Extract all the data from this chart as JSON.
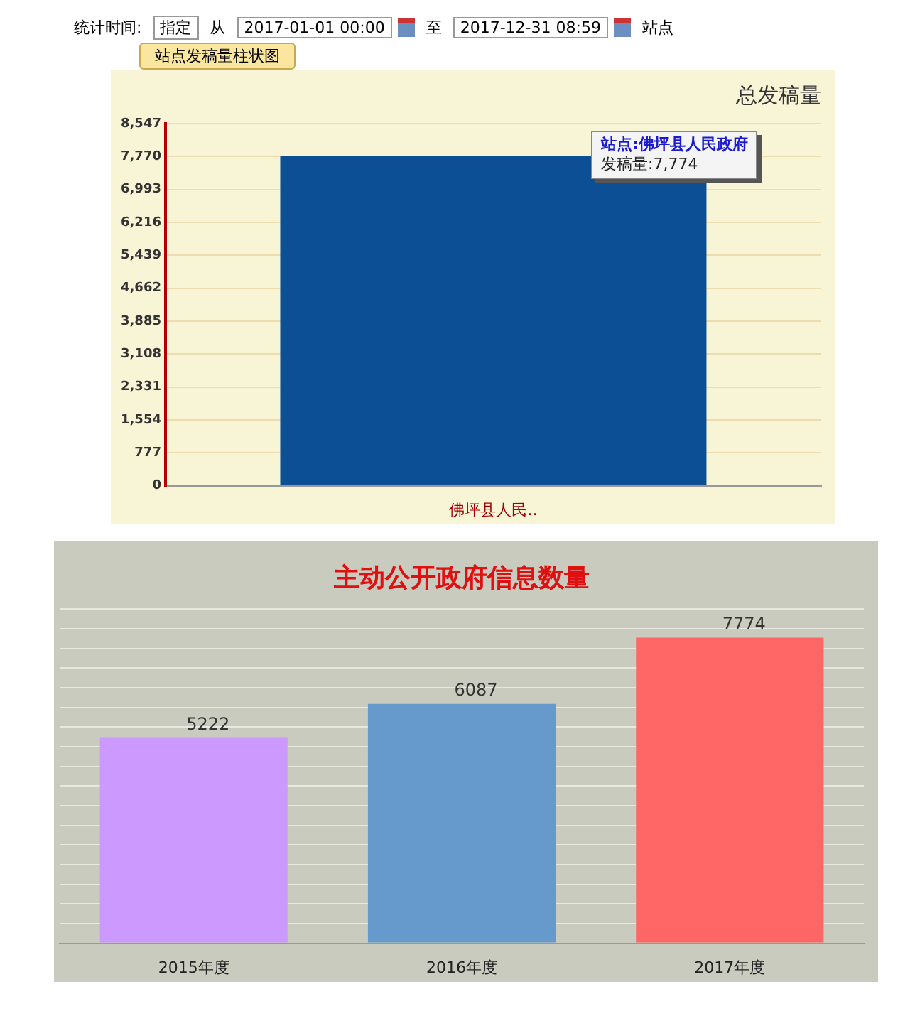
{
  "chart_data": [
    {
      "type": "bar",
      "title": "总发稿量",
      "subtitle": "站点发稿量柱状图",
      "categories": [
        "佛坪县人民.."
      ],
      "values": [
        7774
      ],
      "color": "#0d4f94",
      "ylim": [
        0,
        8547
      ],
      "yticks": [
        0,
        777,
        {
          "value": 1554,
          "label": "1,554"
        },
        {
          "value": 2331,
          "label": "2,331"
        },
        {
          "value": 3108,
          "label": "3,108"
        },
        {
          "value": 3885,
          "label": "3,885"
        },
        {
          "value": 4662,
          "label": "4,662"
        },
        {
          "value": 5439,
          "label": "5,439"
        },
        {
          "value": 6216,
          "label": "6,216"
        },
        {
          "value": 6993,
          "label": "6,993"
        },
        {
          "value": 7770,
          "label": "7,770"
        },
        {
          "value": 8547,
          "label": "8,547"
        }
      ],
      "grid": "y",
      "legend": false,
      "annotations": [
        "统计时间:",
        "指定",
        "从",
        "2017-01-01 00:00",
        "至",
        "2017-12-31 08:59",
        "站点",
        "站点:佛坪县人民政府",
        "发稿量:7,774"
      ]
    },
    {
      "type": "bar",
      "title": "主动公开政府信息数量",
      "categories": [
        "2015年度",
        "2016年度",
        "2017年度"
      ],
      "values": [
        5222,
        6087,
        7774
      ],
      "colors": [
        "#cc99ff",
        "#6699cc",
        "#ff6666"
      ],
      "data_labels": true,
      "ylim": [
        0,
        8500
      ],
      "yticks": [
        {
          "value": 0,
          "label": null
        },
        {
          "value": 500,
          "label": null
        },
        {
          "value": 1000,
          "label": null
        },
        {
          "value": 1500,
          "label": null
        },
        {
          "value": 2000,
          "label": null
        },
        {
          "value": 2500,
          "label": null
        },
        {
          "value": 3000,
          "label": null
        },
        {
          "value": 3500,
          "label": null
        },
        {
          "value": 4000,
          "label": null
        },
        {
          "value": 4500,
          "label": null
        },
        {
          "value": 5000,
          "label": null
        },
        {
          "value": 5500,
          "label": null
        },
        {
          "value": 6000,
          "label": null
        },
        {
          "value": 6500,
          "label": null
        },
        {
          "value": 7000,
          "label": null
        },
        {
          "value": 7500,
          "label": null
        },
        {
          "value": 8000,
          "label": null
        },
        {
          "value": 8500,
          "label": null
        }
      ],
      "grid": "y",
      "tick_labels": "x",
      "legend": false
    }
  ]
}
